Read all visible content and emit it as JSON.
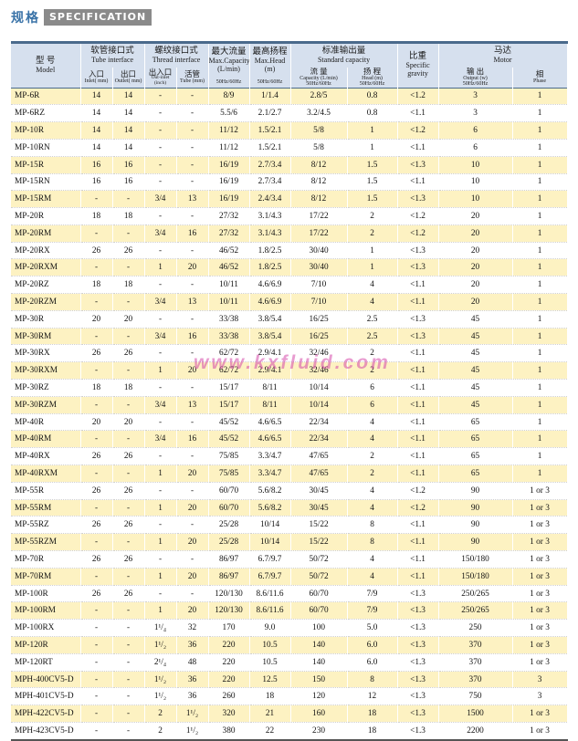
{
  "header": {
    "title_cn": "规格",
    "title_en": "SPECIFICATION"
  },
  "watermark": "www.kxfluid.com",
  "table": {
    "head": {
      "model_cn": "型  号",
      "model_en": "Model",
      "tube_cn": "软管接口式",
      "tube_en": "Tube interface",
      "tube_inlet_cn": "入口",
      "tube_inlet_en": "Inlet( mm)",
      "tube_outlet_cn": "出口",
      "tube_outlet_en": "Outlet( mm)",
      "thread_cn": "螺纹接口式",
      "thread_en": "Thread interface",
      "thread_io_cn": "出入口",
      "thread_io_en": "Out-inlet",
      "thread_io_unit": "(inch)",
      "thread_tube_cn": "活管",
      "thread_tube_en": "Tube (mm)",
      "maxcap_cn": "最大流量",
      "maxcap_en": "Max.Capacity",
      "maxcap_unit": "(L/min)",
      "maxhead_cn": "最高扬程",
      "maxhead_en": "Max.Head",
      "maxhead_unit": "(m)",
      "hz_cap": "50Hz/60Hz",
      "hz_head": "50Hz/60Hz",
      "std_cn": "标准输出量",
      "std_en": "Standard capacity",
      "flow_cn": "流  量",
      "flow_en": "Capacity (L/min)",
      "flow_hz": "50Hz/60Hz",
      "lift_cn": "扬  程",
      "lift_en": "Head (m)",
      "lift_hz": "50Hz/60Hz",
      "grav_cn": "比重",
      "grav_en1": "Specific",
      "grav_en2": "gravity",
      "motor_cn": "马达",
      "motor_en": "Motor",
      "out_cn": "输  出",
      "out_en": "Output (w)",
      "out_hz": "50Hz/60Hz",
      "phase_cn": "相",
      "phase_en": "Phase"
    },
    "rows": [
      [
        "MP-6R",
        "14",
        "14",
        "-",
        "-",
        "8/9",
        "1/1.4",
        "2.8/5",
        "0.8",
        "<1.2",
        "3",
        "1"
      ],
      [
        "MP-6RZ",
        "14",
        "14",
        "-",
        "-",
        "5.5/6",
        "2.1/2.7",
        "3.2/4.5",
        "0.8",
        "<1.1",
        "3",
        "1"
      ],
      [
        "MP-10R",
        "14",
        "14",
        "-",
        "-",
        "11/12",
        "1.5/2.1",
        "5/8",
        "1",
        "<1.2",
        "6",
        "1"
      ],
      [
        "MP-10RN",
        "14",
        "14",
        "-",
        "-",
        "11/12",
        "1.5/2.1",
        "5/8",
        "1",
        "<1.1",
        "6",
        "1"
      ],
      [
        "MP-15R",
        "16",
        "16",
        "-",
        "-",
        "16/19",
        "2.7/3.4",
        "8/12",
        "1.5",
        "<1.3",
        "10",
        "1"
      ],
      [
        "MP-15RN",
        "16",
        "16",
        "-",
        "-",
        "16/19",
        "2.7/3.4",
        "8/12",
        "1.5",
        "<1.1",
        "10",
        "1"
      ],
      [
        "MP-15RM",
        "-",
        "-",
        "3/4",
        "13",
        "16/19",
        "2.4/3.4",
        "8/12",
        "1.5",
        "<1.3",
        "10",
        "1"
      ],
      [
        "MP-20R",
        "18",
        "18",
        "-",
        "-",
        "27/32",
        "3.1/4.3",
        "17/22",
        "2",
        "<1.2",
        "20",
        "1"
      ],
      [
        "MP-20RM",
        "-",
        "-",
        "3/4",
        "16",
        "27/32",
        "3.1/4.3",
        "17/22",
        "2",
        "<1.2",
        "20",
        "1"
      ],
      [
        "MP-20RX",
        "26",
        "26",
        "-",
        "-",
        "46/52",
        "1.8/2.5",
        "30/40",
        "1",
        "<1.3",
        "20",
        "1"
      ],
      [
        "MP-20RXM",
        "-",
        "-",
        "1",
        "20",
        "46/52",
        "1.8/2.5",
        "30/40",
        "1",
        "<1.3",
        "20",
        "1"
      ],
      [
        "MP-20RZ",
        "18",
        "18",
        "-",
        "-",
        "10/11",
        "4.6/6.9",
        "7/10",
        "4",
        "<1.1",
        "20",
        "1"
      ],
      [
        "MP-20RZM",
        "-",
        "-",
        "3/4",
        "13",
        "10/11",
        "4.6/6.9",
        "7/10",
        "4",
        "<1.1",
        "20",
        "1"
      ],
      [
        "MP-30R",
        "20",
        "20",
        "-",
        "-",
        "33/38",
        "3.8/5.4",
        "16/25",
        "2.5",
        "<1.3",
        "45",
        "1"
      ],
      [
        "MP-30RM",
        "-",
        "-",
        "3/4",
        "16",
        "33/38",
        "3.8/5.4",
        "16/25",
        "2.5",
        "<1.3",
        "45",
        "1"
      ],
      [
        "MP-30RX",
        "26",
        "26",
        "-",
        "-",
        "62/72",
        "2.9/4.1",
        "32/46",
        "2",
        "<1.1",
        "45",
        "1"
      ],
      [
        "MP-30RXM",
        "-",
        "-",
        "1",
        "20",
        "62/72",
        "2.9/4.1",
        "32/46",
        "2",
        "<1.1",
        "45",
        "1"
      ],
      [
        "MP-30RZ",
        "18",
        "18",
        "-",
        "-",
        "15/17",
        "8/11",
        "10/14",
        "6",
        "<1.1",
        "45",
        "1"
      ],
      [
        "MP-30RZM",
        "-",
        "-",
        "3/4",
        "13",
        "15/17",
        "8/11",
        "10/14",
        "6",
        "<1.1",
        "45",
        "1"
      ],
      [
        "MP-40R",
        "20",
        "20",
        "-",
        "-",
        "45/52",
        "4.6/6.5",
        "22/34",
        "4",
        "<1.1",
        "65",
        "1"
      ],
      [
        "MP-40RM",
        "-",
        "-",
        "3/4",
        "16",
        "45/52",
        "4.6/6.5",
        "22/34",
        "4",
        "<1.1",
        "65",
        "1"
      ],
      [
        "MP-40RX",
        "26",
        "26",
        "-",
        "-",
        "75/85",
        "3.3/4.7",
        "47/65",
        "2",
        "<1.1",
        "65",
        "1"
      ],
      [
        "MP-40RXM",
        "-",
        "-",
        "1",
        "20",
        "75/85",
        "3.3/4.7",
        "47/65",
        "2",
        "<1.1",
        "65",
        "1"
      ],
      [
        "MP-55R",
        "26",
        "26",
        "-",
        "-",
        "60/70",
        "5.6/8.2",
        "30/45",
        "4",
        "<1.2",
        "90",
        "1 or 3"
      ],
      [
        "MP-55RM",
        "-",
        "-",
        "1",
        "20",
        "60/70",
        "5.6/8.2",
        "30/45",
        "4",
        "<1.2",
        "90",
        "1 or 3"
      ],
      [
        "MP-55RZ",
        "26",
        "26",
        "-",
        "-",
        "25/28",
        "10/14",
        "15/22",
        "8",
        "<1.1",
        "90",
        "1 or 3"
      ],
      [
        "MP-55RZM",
        "-",
        "-",
        "1",
        "20",
        "25/28",
        "10/14",
        "15/22",
        "8",
        "<1.1",
        "90",
        "1 or 3"
      ],
      [
        "MP-70R",
        "26",
        "26",
        "-",
        "-",
        "86/97",
        "6.7/9.7",
        "50/72",
        "4",
        "<1.1",
        "150/180",
        "1 or 3"
      ],
      [
        "MP-70RM",
        "-",
        "-",
        "1",
        "20",
        "86/97",
        "6.7/9.7",
        "50/72",
        "4",
        "<1.1",
        "150/180",
        "1 or 3"
      ],
      [
        "MP-100R",
        "26",
        "26",
        "-",
        "-",
        "120/130",
        "8.6/11.6",
        "60/70",
        "7/9",
        "<1.3",
        "250/265",
        "1 or 3"
      ],
      [
        "MP-100RM",
        "-",
        "-",
        "1",
        "20",
        "120/130",
        "8.6/11.6",
        "60/70",
        "7/9",
        "<1.3",
        "250/265",
        "1 or 3"
      ],
      [
        "MP-100RX",
        "-",
        "-",
        "1¹/₄",
        "32",
        "170",
        "9.0",
        "100",
        "5.0",
        "<1.3",
        "250",
        "1 or 3"
      ],
      [
        "MP-120R",
        "-",
        "-",
        "1¹/₂",
        "36",
        "220",
        "10.5",
        "140",
        "6.0",
        "<1.3",
        "370",
        "1 or 3"
      ],
      [
        "MP-120RT",
        "-",
        "-",
        "2¹/₄",
        "48",
        "220",
        "10.5",
        "140",
        "6.0",
        "<1.3",
        "370",
        "1 or 3"
      ],
      [
        "MPH-400CV5-D",
        "-",
        "-",
        "1¹/₂",
        "36",
        "220",
        "12.5",
        "150",
        "8",
        "<1.3",
        "370",
        "3"
      ],
      [
        "MPH-401CV5-D",
        "-",
        "-",
        "1¹/₂",
        "36",
        "260",
        "18",
        "120",
        "12",
        "<1.3",
        "750",
        "3"
      ],
      [
        "MPH-422CV5-D",
        "-",
        "-",
        "2",
        "1¹/₂",
        "320",
        "21",
        "160",
        "18",
        "<1.3",
        "1500",
        "1 or 3"
      ],
      [
        "MPH-423CV5-D",
        "-",
        "-",
        "2",
        "1¹/₂",
        "380",
        "22",
        "230",
        "18",
        "<1.3",
        "2200",
        "1 or 3"
      ]
    ]
  }
}
